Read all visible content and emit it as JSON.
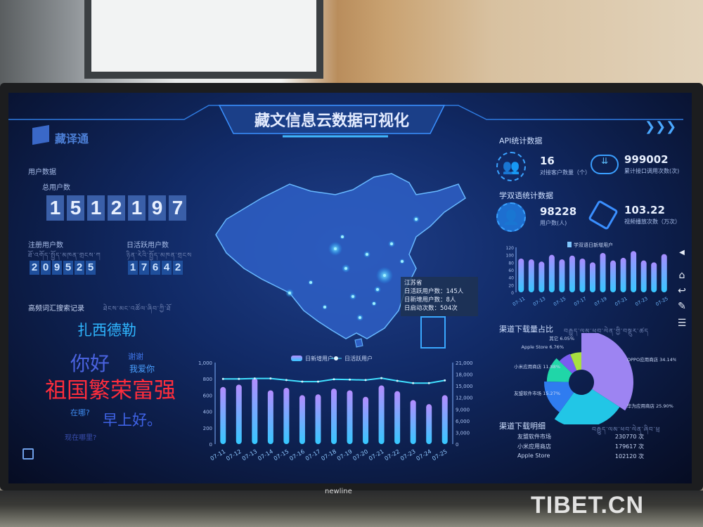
{
  "header": {
    "title": "藏文信息云数据可视化",
    "logo_text": "藏译通",
    "nav_arrows": "❯❯❯"
  },
  "user_data": {
    "section_title": "用户数据",
    "total_label": "总用户数",
    "total_digits": [
      "1",
      "5",
      "1",
      "2",
      "1",
      "9",
      "7"
    ],
    "registered_label": "注册用户数",
    "registered_tibetan": "ཐོ་འགོད་སྤྱོད་མཁན་གྲངས་ཀ",
    "registered_digits": [
      "2",
      "0",
      "9",
      "5",
      "2",
      "5"
    ],
    "daily_active_label": "日活跃用户数",
    "daily_active_tibetan": "ཉིན་རེའི་སྤྱོད་མཁན་གྲངས",
    "daily_active_digits": [
      "1",
      "7",
      "6",
      "4",
      "2"
    ]
  },
  "search_words": {
    "title": "高频词汇搜索记录",
    "tibetan": "ཐེངས་མང་འཚོལ་ཞིབ་ཀྱི་ཐོ",
    "words": [
      {
        "text": "扎西德勒",
        "color": "#2fb6ff"
      },
      {
        "text": "你好",
        "color": "#4a63e0"
      },
      {
        "text": "谢谢",
        "color": "#3f74e6"
      },
      {
        "text": "我爱你",
        "color": "#4aa0ff"
      },
      {
        "text": "祖国繁荣富强",
        "color": "#ff2d3c"
      },
      {
        "text": "在哪?",
        "color": "#3f8cf0"
      },
      {
        "text": "早上好。",
        "color": "#3f63e6"
      },
      {
        "text": "现在哪里?",
        "color": "#3a4fb0"
      }
    ]
  },
  "map": {
    "tooltip": {
      "province": "江苏省",
      "active": "日活跃用户数：145人",
      "new": "日新增用户数：8人",
      "launches": "日启动次数：504次"
    }
  },
  "api_stats": {
    "title": "API统计数据",
    "clients_value": "16",
    "clients_label": "对接客户数量（个）",
    "calls_value": "999002",
    "calls_label": "累计接口调用次数(次)"
  },
  "bilingual_stats": {
    "title": "学双语统计数据",
    "users_value": "98228",
    "users_label": "用户数(人)",
    "plays_value": "103.22",
    "plays_label": "视频播放次数（万次）"
  },
  "chart_data": [
    {
      "type": "bar+line",
      "categories": [
        "07-11",
        "07-12",
        "07-13",
        "07-14",
        "07-15",
        "07-16",
        "07-17",
        "07-18",
        "07-19",
        "07-20",
        "07-21",
        "07-22",
        "07-23",
        "07-24",
        "07-25"
      ],
      "series": [
        {
          "name": "日新增用户",
          "type": "bar",
          "axis": "left",
          "values": [
            700,
            730,
            810,
            660,
            690,
            600,
            610,
            680,
            660,
            580,
            720,
            650,
            540,
            490,
            600
          ]
        },
        {
          "name": "日活跃用户",
          "type": "line",
          "axis": "right",
          "values": [
            16800,
            16800,
            16900,
            16900,
            16500,
            16100,
            16100,
            16700,
            16600,
            16500,
            17000,
            16300,
            15700,
            15700,
            16400
          ]
        }
      ],
      "y_left": {
        "ticks": [
          "0",
          "200",
          "400",
          "600",
          "800",
          "1,000"
        ],
        "range": [
          0,
          1000
        ]
      },
      "y_right": {
        "ticks": [
          "0",
          "3,000",
          "6,000",
          "9,000",
          "12,000",
          "15,000",
          "18,000",
          "21,000"
        ],
        "range": [
          0,
          21000
        ]
      },
      "legend": "top-center",
      "colors": {
        "bar_top": "#b48cff",
        "bar_bottom": "#35c8ff",
        "line": "#40e0ff"
      }
    },
    {
      "type": "bar",
      "categories": [
        "07-11",
        "07-12",
        "07-13",
        "07-14",
        "07-15",
        "07-16",
        "07-17",
        "07-18",
        "07-19",
        "07-20",
        "07-21",
        "07-22",
        "07-23",
        "07-24",
        "07-25"
      ],
      "tick_labels": [
        "07-11",
        "07-13",
        "07-15",
        "07-17",
        "07-19",
        "07-21",
        "07-23",
        "07-25"
      ],
      "series": [
        {
          "name": "学双语日新增用户",
          "values": [
            90,
            88,
            82,
            100,
            88,
            98,
            90,
            80,
            105,
            85,
            92,
            110,
            85,
            80,
            102
          ]
        }
      ],
      "y_ticks": [
        "0",
        "20",
        "40",
        "60",
        "80",
        "100",
        "120"
      ],
      "ylim": [
        0,
        120
      ],
      "legend": "top-center"
    },
    {
      "type": "pie",
      "variant": "rose-donut",
      "title": "渠道下载量占比",
      "title_tibetan": "བརྒྱུད་ལམ་ཕབ་ལེན་གྱི་བསྡུར་ཚད",
      "slices": [
        {
          "label": "OPPO应用商店",
          "value": 34.14,
          "text": "OPPO应用商店  34.14%",
          "color": "#9d84f2"
        },
        {
          "label": "华为应用商店",
          "value": 25.9,
          "text": "华为应用商店  25.90%",
          "color": "#22c6e6"
        },
        {
          "label": "友盟软件市场",
          "value": 15.27,
          "text": "友盟软件市场  15.27%",
          "color": "#2f7cf0"
        },
        {
          "label": "小米应用商店",
          "value": 11.88,
          "text": "小米应用商店  11.88%",
          "color": "#20d6a8"
        },
        {
          "label": "Apple Store",
          "value": 6.76,
          "text": "Apple Store  6.76%",
          "color": "#7a5cf0"
        },
        {
          "label": "其它",
          "value": 6.05,
          "text": "其它  6.05%",
          "color": "#a8e040"
        }
      ]
    }
  ],
  "download_detail": {
    "title": "渠道下载明细",
    "tibetan": "བརྒྱུད་ལམ་ཕབ་ལེན་ཞིབ་ཕྲ",
    "rows": [
      {
        "name": "友盟软件市场",
        "value": "230770 次"
      },
      {
        "name": "小米应用商店",
        "value": "179617 次"
      },
      {
        "name": "Apple Store",
        "value": "102120 次"
      }
    ]
  },
  "side_toolbar": {
    "collapse": "◀",
    "home": "⌂",
    "back": "↩",
    "pen": "✎",
    "menu": "☰"
  },
  "monitor_brand": "newline",
  "watermark": "TIBET.CN"
}
